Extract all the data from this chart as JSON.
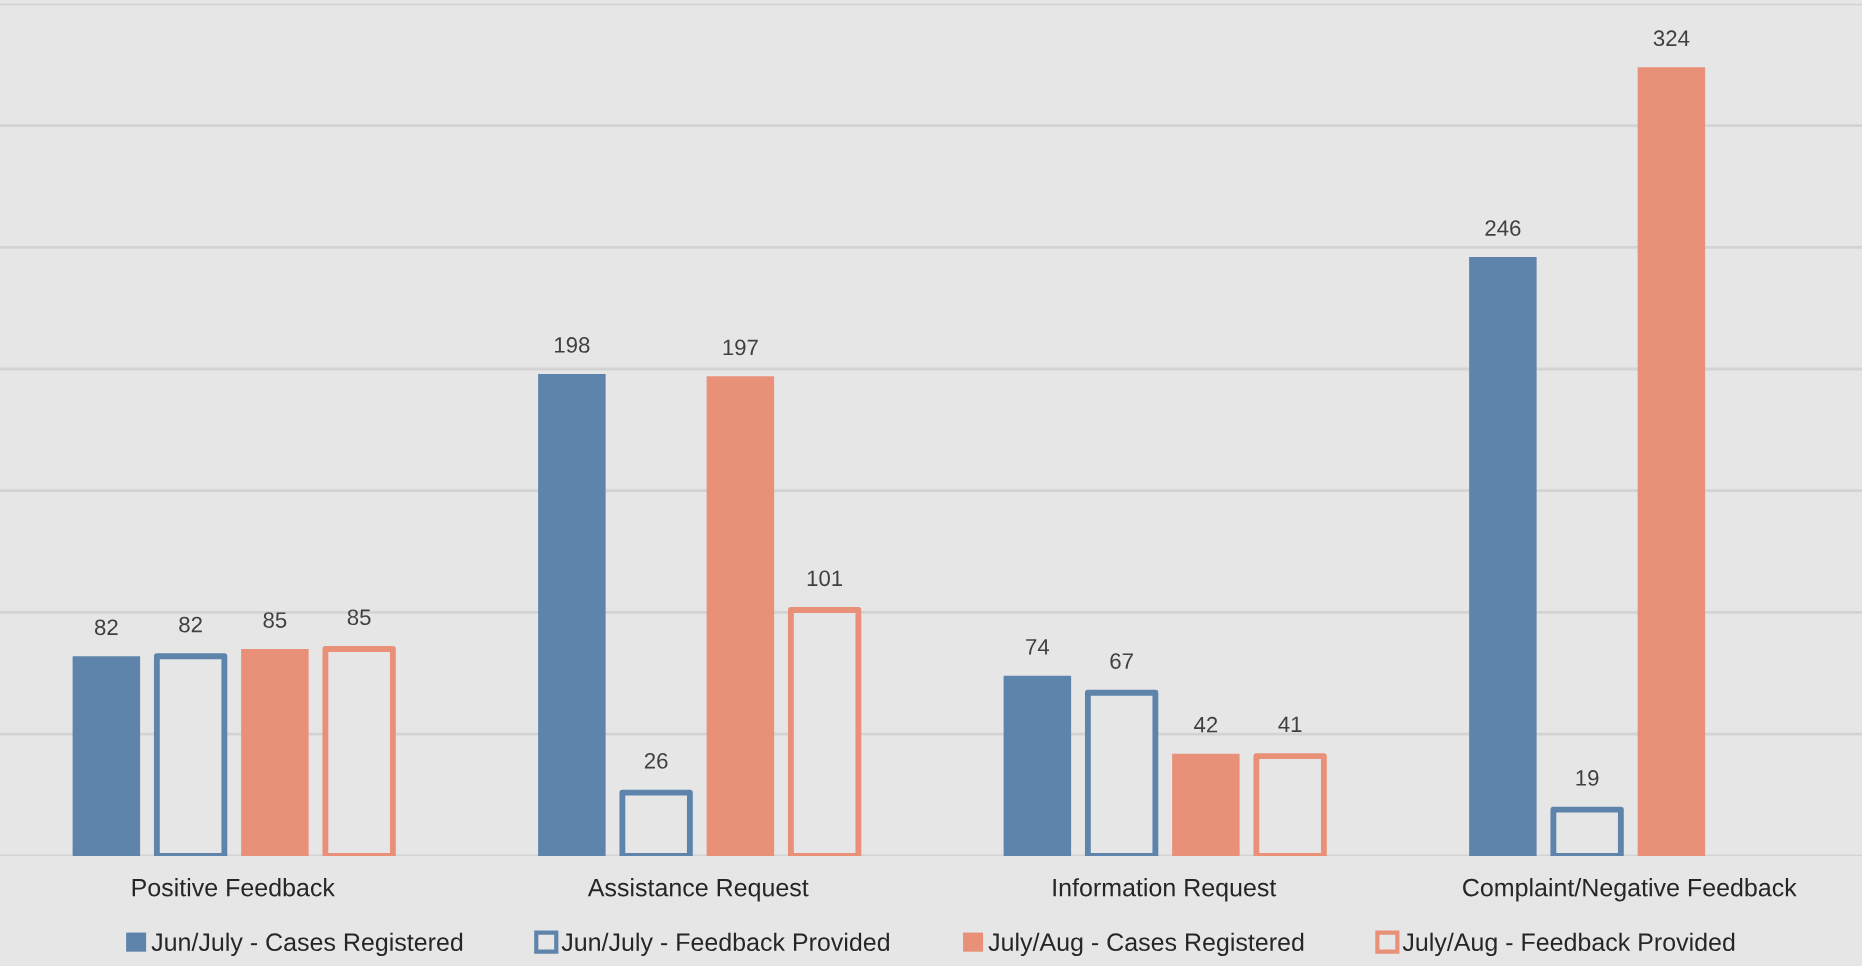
{
  "chart_data": {
    "type": "bar",
    "categories": [
      "Positive Feedback",
      "Assistance Request",
      "Information Request",
      "Complaint/Negative Feedback"
    ],
    "series": [
      {
        "name": "Jun/July - Cases Registered",
        "color": "#5e84ab",
        "values": [
          82,
          198,
          74,
          246
        ]
      },
      {
        "name": "Jun/July - Feedback Provided",
        "color": "#5e84ab",
        "colors": [
          "#e6e6e6",
          "#e6e6e6",
          "#e6e6e6",
          "#e6e6e6"
        ],
        "values": [
          82,
          26,
          67,
          19
        ]
      },
      {
        "name": "July/Aug - Cases Registered",
        "color": "#e89178",
        "values": [
          85,
          197,
          42,
          324
        ]
      },
      {
        "name": "July/Aug - Feedback Provided",
        "color": "#e89178",
        "colors": [
          "#e6e6e6",
          "#e6e6e6",
          "#e6e6e6",
          "#e6e6e6"
        ],
        "values": [
          85,
          101,
          41,
          null
        ]
      }
    ],
    "ylim": [
      0,
      350
    ],
    "yticks": [
      {
        "value": 0,
        "label": null
      },
      {
        "value": 50,
        "label": null
      },
      {
        "value": 100,
        "label": null
      },
      {
        "value": 150,
        "label": null
      },
      {
        "value": 200,
        "label": null
      },
      {
        "value": 250,
        "label": null
      },
      {
        "value": 300,
        "label": null
      },
      {
        "value": 350,
        "label": null
      }
    ],
    "tick_labels": "x",
    "grid": "y",
    "legend": "bottom",
    "data_labels": true
  }
}
